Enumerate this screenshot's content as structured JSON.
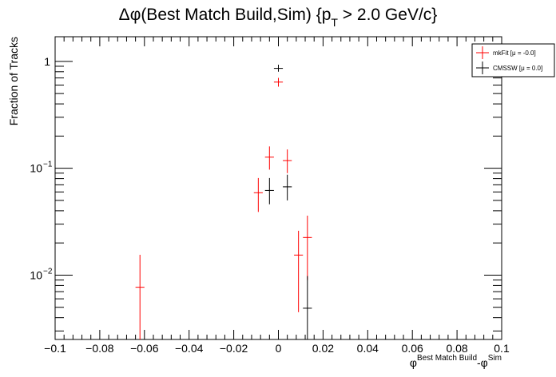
{
  "chart_data": {
    "type": "scatter",
    "title_main": "Δφ(Best Match Build,Sim) {p",
    "title_sub": "T",
    "title_tail": " > 2.0 GeV/c}",
    "ylabel": "Fraction of Tracks",
    "xlabel_main": "φ",
    "xlabel_sup1": "Best Match Build",
    "xlabel_mid": "-φ",
    "xlabel_sup2": "Sim",
    "xlim": [
      -0.1,
      0.1
    ],
    "ylim": [
      0.0025,
      1.7
    ],
    "yscale": "log",
    "x_ticks": [
      -0.1,
      -0.08,
      -0.06,
      -0.04,
      -0.02,
      0,
      0.02,
      0.04,
      0.06,
      0.08,
      0.1
    ],
    "x_tick_labels": [
      "−0.1",
      "−0.08",
      "−0.06",
      "−0.04",
      "−0.02",
      "0",
      "0.02",
      "0.04",
      "0.06",
      "0.08",
      "0.1"
    ],
    "y_ticks_major": [
      0.01,
      0.1,
      1
    ],
    "y_tick_labels": [
      "10",
      "10",
      "1"
    ],
    "y_tick_exponents": [
      "−2",
      "−1",
      ""
    ],
    "bin_half_width": 0.002,
    "legend": {
      "placement": "top-right",
      "entries": [
        {
          "label": "mkFit  [μ = -0.0]",
          "color": "#ff0000"
        },
        {
          "label": "CMSSW  [μ =  0.0]",
          "color": "#000000"
        }
      ]
    },
    "series": [
      {
        "name": "mkFit  [μ = -0.0]",
        "color": "#ff0000",
        "points": [
          {
            "x": -0.062,
            "y": 0.0077,
            "ylo": 0.002,
            "yhi": 0.0155
          },
          {
            "x": -0.009,
            "y": 0.059,
            "ylo": 0.039,
            "yhi": 0.081
          },
          {
            "x": -0.004,
            "y": 0.127,
            "ylo": 0.097,
            "yhi": 0.16
          },
          {
            "x": 0.0,
            "y": 0.64,
            "ylo": 0.58,
            "yhi": 0.7
          },
          {
            "x": 0.004,
            "y": 0.118,
            "ylo": 0.09,
            "yhi": 0.15
          },
          {
            "x": 0.009,
            "y": 0.0154,
            "ylo": 0.0045,
            "yhi": 0.026
          },
          {
            "x": 0.013,
            "y": 0.0225,
            "ylo": 0.009,
            "yhi": 0.036
          }
        ]
      },
      {
        "name": "CMSSW  [μ =  0.0]",
        "color": "#000000",
        "points": [
          {
            "x": -0.004,
            "y": 0.062,
            "ylo": 0.046,
            "yhi": 0.081
          },
          {
            "x": 0.0,
            "y": 0.86,
            "ylo": 0.8,
            "yhi": 0.93
          },
          {
            "x": 0.004,
            "y": 0.067,
            "ylo": 0.05,
            "yhi": 0.087
          },
          {
            "x": 0.013,
            "y": 0.0049,
            "ylo": 0.002,
            "yhi": 0.0098
          }
        ]
      }
    ]
  }
}
